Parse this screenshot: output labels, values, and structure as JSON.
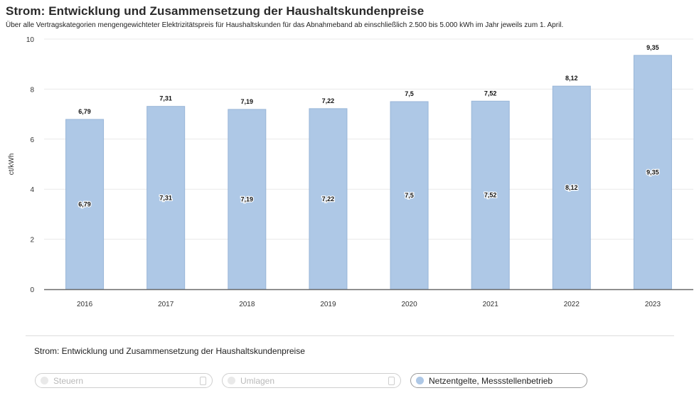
{
  "title": "Strom: Entwicklung und Zusammensetzung der Haushaltskundenpreise",
  "subtitle": "Über alle Vertragskategorien mengengewichteter Elektrizitätspreis für Haushaltskunden für das Abnahmeband ab einschließlich 2.500 bis 5.000 kWh im Jahr jeweils zum 1. April.",
  "footer_title": "Strom: Entwicklung und Zusammensetzung der Haushaltskundenpreise",
  "legend": [
    {
      "label": "Steuern",
      "enabled": false
    },
    {
      "label": "Umlagen",
      "enabled": false
    },
    {
      "label": "Netzentgelte, Messstellenbetrieb",
      "enabled": true
    }
  ],
  "colors": {
    "bar": "#aec8e6",
    "bar_stroke": "#99b6d8",
    "disabled": "#e6e6e6",
    "grid": "#e9e9e9",
    "axis": "#6b6b6b"
  },
  "chart_data": {
    "type": "bar",
    "categories": [
      "2016",
      "2017",
      "2018",
      "2019",
      "2020",
      "2021",
      "2022",
      "2023"
    ],
    "series": [
      {
        "name": "Netzentgelte, Messstellenbetrieb",
        "values": [
          6.79,
          7.31,
          7.19,
          7.22,
          7.5,
          7.52,
          8.12,
          9.35
        ]
      }
    ],
    "value_labels": [
      "6,79",
      "7,31",
      "7,19",
      "7,22",
      "7,5",
      "7,52",
      "8,12",
      "9,35"
    ],
    "ylabel": "ct/kWh",
    "ylim": [
      0,
      10
    ],
    "yticks": [
      0,
      2,
      4,
      6,
      8,
      10
    ],
    "grid": true
  }
}
